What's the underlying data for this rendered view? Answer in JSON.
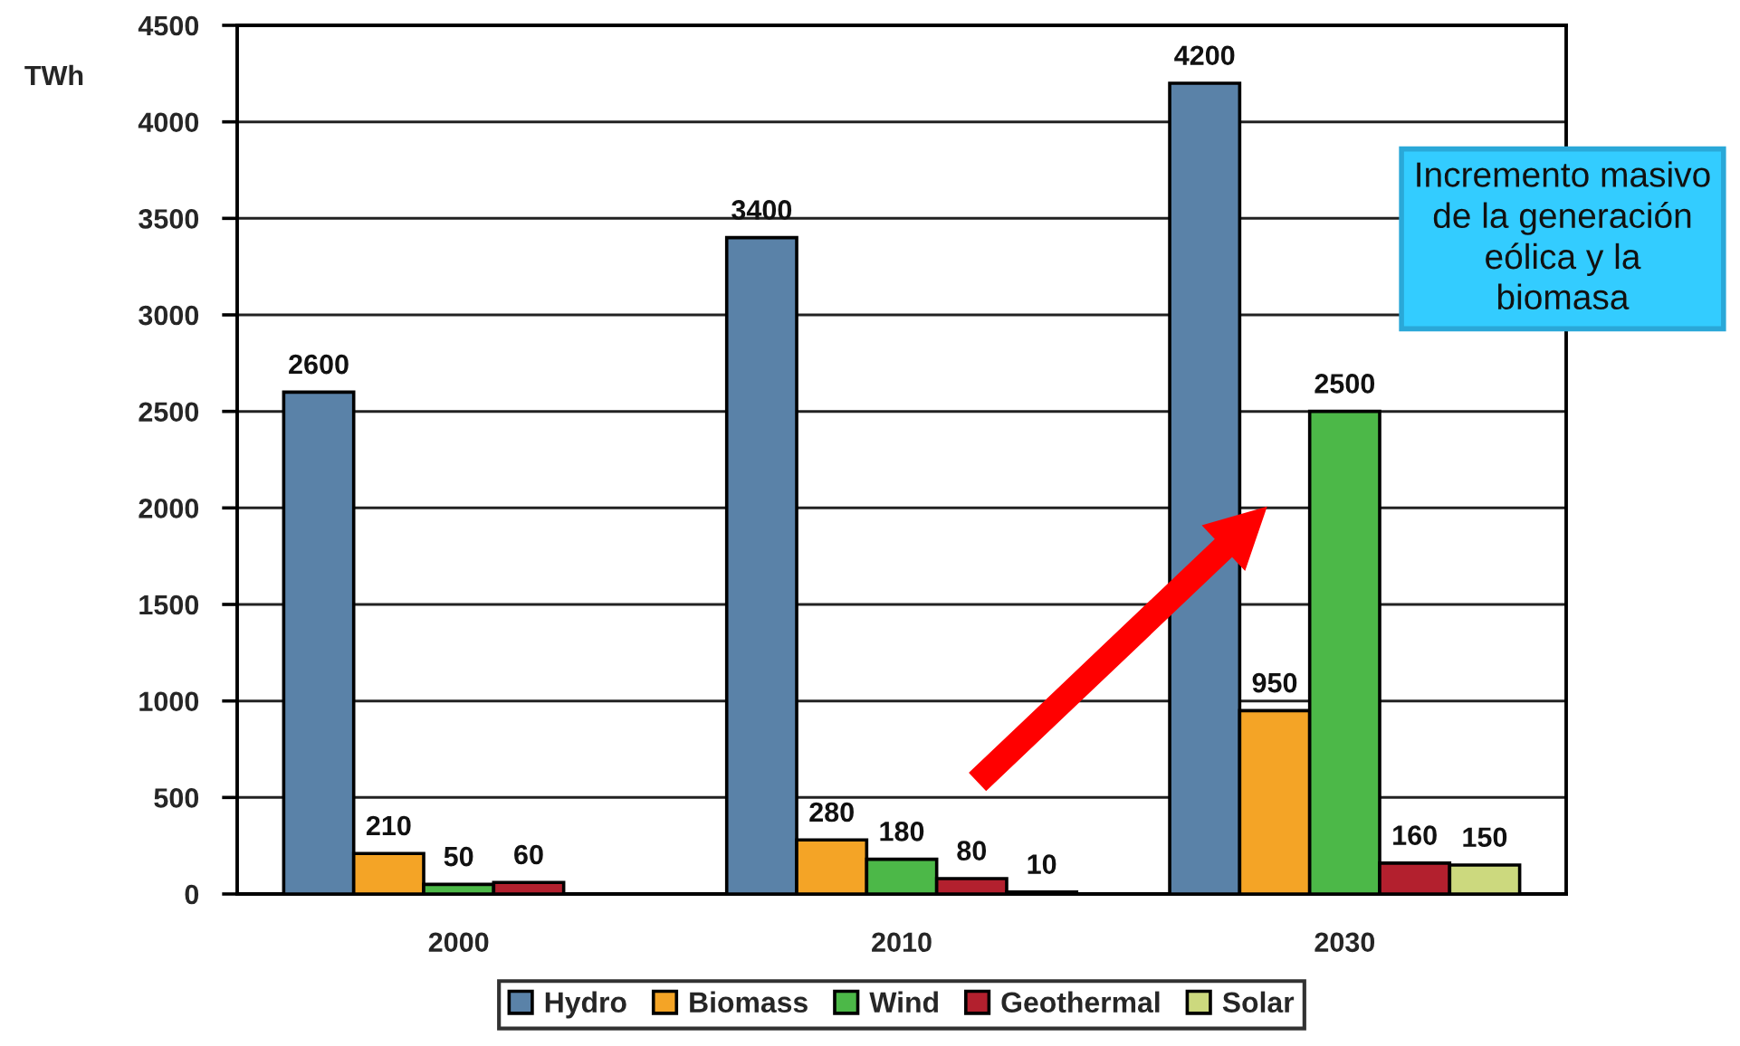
{
  "chart_data": {
    "type": "bar",
    "ylabel": "TWh",
    "categories": [
      "2000",
      "2010",
      "2030"
    ],
    "series": [
      {
        "name": "Hydro",
        "color": "#5a82a8",
        "values": [
          2600,
          3400,
          4200
        ]
      },
      {
        "name": "Biomass",
        "color": "#f4a426",
        "values": [
          210,
          280,
          950
        ]
      },
      {
        "name": "Wind",
        "color": "#4cb848",
        "values": [
          50,
          180,
          2500
        ]
      },
      {
        "name": "Geothermal",
        "color": "#b3202e",
        "values": [
          60,
          80,
          160
        ]
      },
      {
        "name": "Solar",
        "color": "#ccd97e",
        "values": [
          null,
          10,
          150
        ]
      }
    ],
    "ylim": [
      0,
      4500
    ],
    "yticks": [
      0,
      500,
      1000,
      1500,
      2000,
      2500,
      3000,
      3500,
      4000,
      4500
    ],
    "grid": "y",
    "legend": "bottom",
    "data_labels": true,
    "annotations": [
      "Incremento masivo\nde la generación\neólica y la\nbiomasa"
    ]
  }
}
